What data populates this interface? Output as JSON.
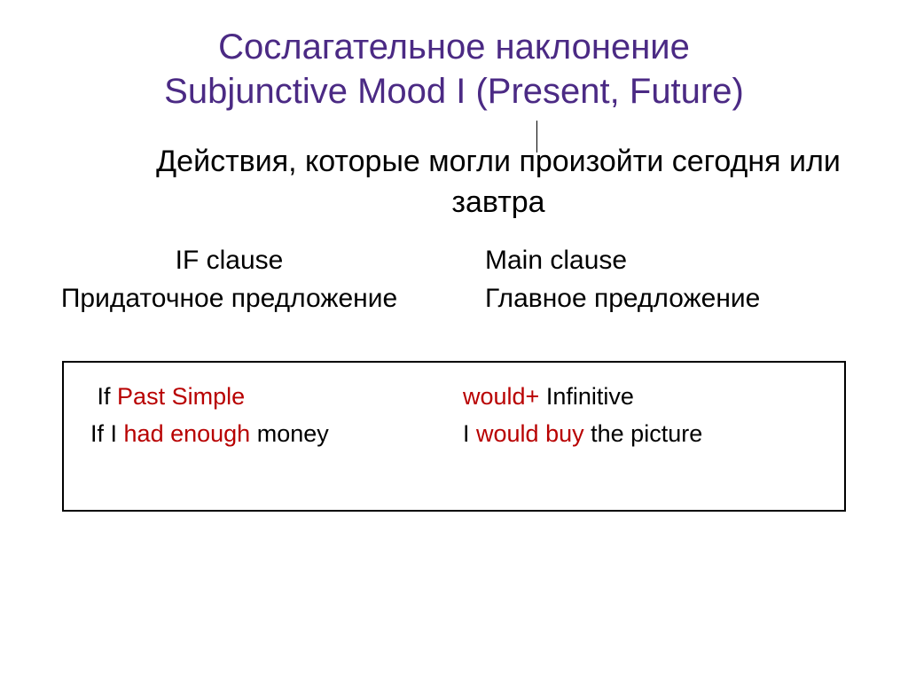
{
  "colors": {
    "title": "#4b2a84",
    "text": "#000000",
    "emphasis": "#b80000",
    "box_border": "#000000",
    "background": "#ffffff"
  },
  "fonts": {
    "title_size": 40,
    "subtitle_size": 34,
    "body_size": 30,
    "example_size": 27
  },
  "title": {
    "line1": "Сослагательное наклонение",
    "line2": "Subjunctive Mood I (Present, Future)"
  },
  "subtitle": "Действия, которые могли произойти сегодня или завтра",
  "left": {
    "heading_en": "IF clause",
    "heading_ru": "Придаточное предложение"
  },
  "right": {
    "heading_en": "Main clause",
    "heading_ru": "Главное предложение"
  },
  "example": {
    "row1": {
      "left_if": "If",
      "left_red": "Past Simple",
      "right_red": "would+",
      "right_black": "Infinitive"
    },
    "row2": {
      "left_prefix": "If I",
      "left_red": "had enough",
      "left_suffix": "money",
      "right_prefix": "I",
      "right_red": "would  buy",
      "right_suffix": "the picture"
    }
  }
}
